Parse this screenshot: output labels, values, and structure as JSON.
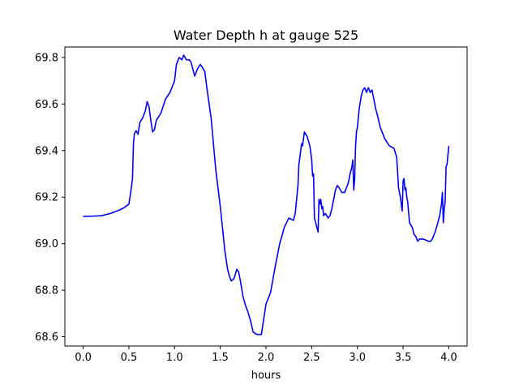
{
  "chart_data": {
    "type": "line",
    "title": "Water Depth h at gauge 525",
    "xlabel": "hours",
    "ylabel": "",
    "xlim": [
      -0.2,
      4.2
    ],
    "ylim": [
      68.56,
      69.845
    ],
    "x_ticks": [
      0.0,
      0.5,
      1.0,
      1.5,
      2.0,
      2.5,
      3.0,
      3.5,
      4.0
    ],
    "x_tick_labels": [
      "0.0",
      "0.5",
      "1.0",
      "1.5",
      "2.0",
      "2.5",
      "3.0",
      "3.5",
      "4.0"
    ],
    "y_ticks": [
      68.6,
      68.8,
      69.0,
      69.2,
      69.4,
      69.6,
      69.8
    ],
    "y_tick_labels": [
      "68.6",
      "68.8",
      "69.0",
      "69.2",
      "69.4",
      "69.6",
      "69.8"
    ],
    "grid": false,
    "series": [
      {
        "name": "",
        "color": "#0000ff",
        "x": [
          0.0,
          0.1,
          0.2,
          0.3,
          0.4,
          0.45,
          0.5,
          0.52,
          0.54,
          0.55,
          0.56,
          0.57,
          0.58,
          0.6,
          0.62,
          0.65,
          0.68,
          0.7,
          0.72,
          0.74,
          0.76,
          0.78,
          0.8,
          0.85,
          0.9,
          0.95,
          0.98,
          1.0,
          1.02,
          1.05,
          1.08,
          1.1,
          1.13,
          1.16,
          1.18,
          1.2,
          1.22,
          1.25,
          1.28,
          1.3,
          1.33,
          1.36,
          1.4,
          1.45,
          1.5,
          1.55,
          1.58,
          1.6,
          1.62,
          1.65,
          1.68,
          1.7,
          1.72,
          1.75,
          1.78,
          1.8,
          1.83,
          1.86,
          1.9,
          1.95,
          2.0,
          2.05,
          2.1,
          2.15,
          2.18,
          2.2,
          2.25,
          2.3,
          2.32,
          2.35,
          2.36,
          2.38,
          2.39,
          2.4,
          2.42,
          2.45,
          2.48,
          2.5,
          2.51,
          2.52,
          2.53,
          2.55,
          2.57,
          2.58,
          2.59,
          2.6,
          2.61,
          2.62,
          2.63,
          2.65,
          2.68,
          2.7,
          2.72,
          2.74,
          2.76,
          2.78,
          2.8,
          2.83,
          2.86,
          2.9,
          2.92,
          2.94,
          2.95,
          2.96,
          2.97,
          2.98,
          2.99,
          3.0,
          3.02,
          3.04,
          3.06,
          3.08,
          3.1,
          3.12,
          3.14,
          3.16,
          3.18,
          3.2,
          3.22,
          3.25,
          3.3,
          3.35,
          3.4,
          3.43,
          3.45,
          3.46,
          3.47,
          3.48,
          3.49,
          3.5,
          3.51,
          3.52,
          3.53,
          3.54,
          3.55,
          3.57,
          3.6,
          3.62,
          3.64,
          3.65,
          3.66,
          3.68,
          3.7,
          3.72,
          3.75,
          3.78,
          3.8,
          3.82,
          3.85,
          3.88,
          3.9,
          3.92,
          3.93,
          3.94,
          3.95,
          3.96,
          3.97,
          3.98,
          4.0
        ],
        "y": [
          69.117,
          69.118,
          69.12,
          69.13,
          69.145,
          69.155,
          69.17,
          69.22,
          69.28,
          69.43,
          69.47,
          69.48,
          69.485,
          69.47,
          69.52,
          69.54,
          69.57,
          69.61,
          69.59,
          69.53,
          69.48,
          69.49,
          69.53,
          69.56,
          69.62,
          69.65,
          69.68,
          69.7,
          69.77,
          69.8,
          69.79,
          69.81,
          69.79,
          69.79,
          69.78,
          69.75,
          69.72,
          69.75,
          69.77,
          69.76,
          69.74,
          69.65,
          69.54,
          69.32,
          69.16,
          68.97,
          68.89,
          68.86,
          68.84,
          68.85,
          68.89,
          68.88,
          68.84,
          68.77,
          68.73,
          68.71,
          68.67,
          68.62,
          68.61,
          68.61,
          68.74,
          68.79,
          68.9,
          69.0,
          69.04,
          69.07,
          69.11,
          69.1,
          69.13,
          69.25,
          69.34,
          69.4,
          69.43,
          69.42,
          69.48,
          69.46,
          69.42,
          69.36,
          69.29,
          69.3,
          69.11,
          69.08,
          69.05,
          69.19,
          69.17,
          69.19,
          69.15,
          69.16,
          69.12,
          69.13,
          69.11,
          69.12,
          69.15,
          69.19,
          69.23,
          69.25,
          69.24,
          69.22,
          69.22,
          69.26,
          69.3,
          69.33,
          69.36,
          69.23,
          69.28,
          69.42,
          69.48,
          69.5,
          69.58,
          69.63,
          69.66,
          69.67,
          69.65,
          69.67,
          69.65,
          69.66,
          69.62,
          69.58,
          69.55,
          69.5,
          69.45,
          69.42,
          69.41,
          69.37,
          69.24,
          69.22,
          69.2,
          69.17,
          69.14,
          69.27,
          69.28,
          69.23,
          69.24,
          69.2,
          69.18,
          69.09,
          69.07,
          69.04,
          69.03,
          69.02,
          69.01,
          69.02,
          69.02,
          69.02,
          69.015,
          69.01,
          69.01,
          69.02,
          69.05,
          69.09,
          69.12,
          69.17,
          69.22,
          69.09,
          69.15,
          69.18,
          69.33,
          69.34,
          69.42
        ]
      }
    ]
  }
}
